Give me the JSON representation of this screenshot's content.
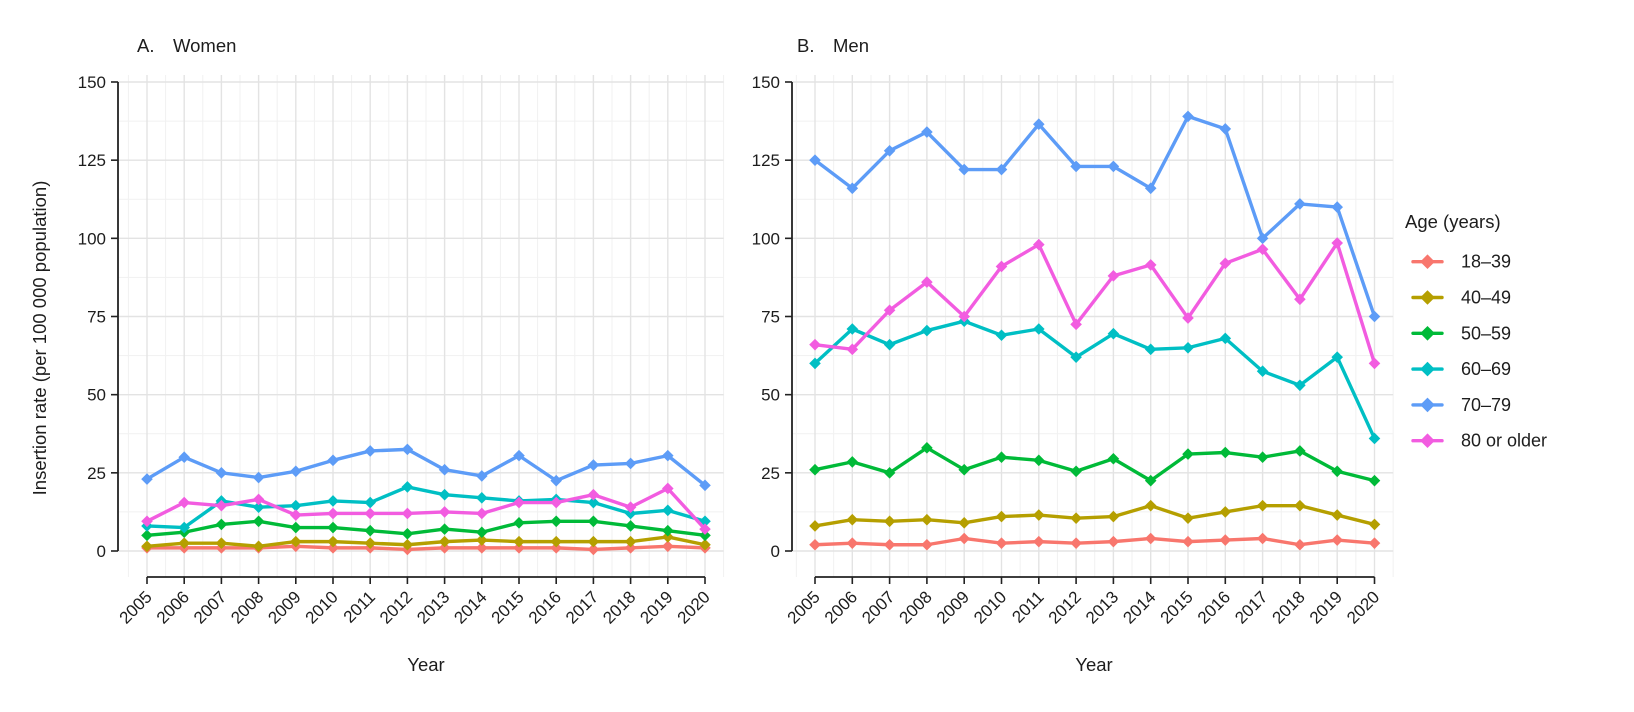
{
  "figure": {
    "panel_a_label": "A.",
    "panel_a_title": "Women",
    "panel_b_label": "B.",
    "panel_b_title": "Men",
    "ylabel": "Insertion rate (per 100 000 population)",
    "xlabel": "Year",
    "text_color": "#1d1d1d",
    "axis_color": "#222222",
    "grid_major_color": "#e3e3e3",
    "grid_minor_color": "#f1f1f1"
  },
  "legend": {
    "title": "Age (years)",
    "entries": [
      {
        "label": "18–39",
        "color": "#F8766D"
      },
      {
        "label": "40–49",
        "color": "#B59F00"
      },
      {
        "label": "50–59",
        "color": "#00BA38"
      },
      {
        "label": "60–69",
        "color": "#00BFC4"
      },
      {
        "label": "70–79",
        "color": "#5D9CF7"
      },
      {
        "label": "80 or older",
        "color": "#F25CE0"
      }
    ]
  },
  "chart_data": [
    {
      "type": "line",
      "panel": "A",
      "title": "Women",
      "xlabel": "Year",
      "ylabel": "Insertion rate (per 100 000 population)",
      "x": [
        2005,
        2006,
        2007,
        2008,
        2009,
        2010,
        2011,
        2012,
        2013,
        2014,
        2015,
        2016,
        2017,
        2018,
        2019,
        2020
      ],
      "ylim": [
        0,
        150
      ],
      "yticks": [
        0,
        25,
        50,
        75,
        100,
        125,
        150
      ],
      "grid": "major and minor, light gray on white",
      "legend_position": "right of figure, shared",
      "marker": "filled diamond",
      "series": [
        {
          "name": "18–39",
          "color": "#F8766D",
          "values": [
            1,
            1,
            1,
            1,
            1.5,
            1,
            1,
            0.5,
            1,
            1,
            1,
            1,
            0.5,
            1,
            1.5,
            1
          ]
        },
        {
          "name": "40–49",
          "color": "#B59F00",
          "values": [
            1.5,
            2.5,
            2.5,
            1.5,
            3,
            3,
            2.5,
            2,
            3,
            3.5,
            3,
            3,
            3,
            3,
            4.5,
            2
          ]
        },
        {
          "name": "50–59",
          "color": "#00BA38",
          "values": [
            5,
            6,
            8.5,
            9.5,
            7.5,
            7.5,
            6.5,
            5.5,
            7,
            6,
            9,
            9.5,
            9.5,
            8,
            6.5,
            5
          ]
        },
        {
          "name": "60–69",
          "color": "#00BFC4",
          "values": [
            8,
            7.5,
            16,
            14,
            14.5,
            16,
            15.5,
            20.5,
            18,
            17,
            16,
            16.5,
            15.5,
            12,
            13,
            9.5
          ]
        },
        {
          "name": "70–79",
          "color": "#5D9CF7",
          "values": [
            23,
            30,
            25,
            23.5,
            25.5,
            29,
            32,
            32.5,
            26,
            24,
            30.5,
            22.5,
            27.5,
            28,
            30.5,
            21
          ]
        },
        {
          "name": "80 or older",
          "color": "#F25CE0",
          "values": [
            9.5,
            15.5,
            14.5,
            16.5,
            11.5,
            12,
            12,
            12,
            12.5,
            12,
            15.5,
            15.5,
            18,
            14,
            20,
            7
          ]
        }
      ]
    },
    {
      "type": "line",
      "panel": "B",
      "title": "Men",
      "xlabel": "Year",
      "ylabel": "Insertion rate (per 100 000 population)",
      "x": [
        2005,
        2006,
        2007,
        2008,
        2009,
        2010,
        2011,
        2012,
        2013,
        2014,
        2015,
        2016,
        2017,
        2018,
        2019,
        2020
      ],
      "ylim": [
        0,
        150
      ],
      "yticks": [
        0,
        25,
        50,
        75,
        100,
        125,
        150
      ],
      "grid": "major and minor, light gray on white",
      "legend_position": "right of figure, shared",
      "marker": "filled diamond",
      "series": [
        {
          "name": "18–39",
          "color": "#F8766D",
          "values": [
            2,
            2.5,
            2,
            2,
            4,
            2.5,
            3,
            2.5,
            3,
            4,
            3,
            3.5,
            4,
            2,
            3.5,
            2.5
          ]
        },
        {
          "name": "40–49",
          "color": "#B59F00",
          "values": [
            8,
            10,
            9.5,
            10,
            9,
            11,
            11.5,
            10.5,
            11,
            14.5,
            10.5,
            12.5,
            14.5,
            14.5,
            11.5,
            8.5
          ]
        },
        {
          "name": "50–59",
          "color": "#00BA38",
          "values": [
            26,
            28.5,
            25,
            33,
            26,
            30,
            29,
            25.5,
            29.5,
            22.5,
            31,
            31.5,
            30,
            32,
            25.5,
            22.5
          ]
        },
        {
          "name": "60–69",
          "color": "#00BFC4",
          "values": [
            60,
            71,
            66,
            70.5,
            73.5,
            69,
            71,
            62,
            69.5,
            64.5,
            65,
            68,
            57.5,
            53,
            62,
            36
          ]
        },
        {
          "name": "70–79",
          "color": "#5D9CF7",
          "values": [
            125,
            116,
            128,
            134,
            122,
            122,
            136.5,
            123,
            123,
            116,
            139,
            135,
            100,
            111,
            110,
            75
          ]
        },
        {
          "name": "80 or older",
          "color": "#F25CE0",
          "values": [
            66,
            64.5,
            77,
            86,
            75,
            91,
            98,
            72.5,
            88,
            91.5,
            74.5,
            92,
            96.5,
            80.5,
            98.5,
            60
          ]
        }
      ]
    }
  ]
}
